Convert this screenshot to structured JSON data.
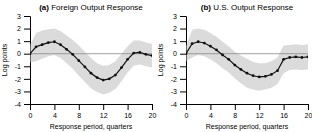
{
  "chart_data": [
    {
      "type": "line",
      "title": "(a) Foreign Output Response",
      "xlabel": "Response period, quarters",
      "ylabel": "Log points",
      "x": [
        0,
        1,
        2,
        3,
        4,
        5,
        6,
        7,
        8,
        9,
        10,
        11,
        12,
        13,
        14,
        15,
        16,
        17,
        18,
        19,
        20
      ],
      "xlim": [
        0,
        20
      ],
      "xticks": [
        0,
        4,
        8,
        12,
        16,
        20
      ],
      "ylim": [
        -4,
        3
      ],
      "yticks": [
        -4,
        -3,
        -2,
        -1,
        0,
        1,
        2,
        3
      ],
      "hline": {
        "y": 0,
        "color": "#888888"
      },
      "series": [
        {
          "color": "#111111",
          "marker": "circle",
          "values": [
            0.0,
            0.55,
            0.72,
            0.88,
            0.95,
            0.72,
            0.35,
            -0.05,
            -0.55,
            -1.05,
            -1.55,
            -1.9,
            -2.1,
            -2.0,
            -1.7,
            -1.1,
            -0.45,
            0.05,
            0.1,
            -0.05,
            -0.15
          ],
          "band_lo": [
            -0.7,
            -0.6,
            -0.4,
            -0.2,
            -0.1,
            -0.35,
            -0.75,
            -1.2,
            -1.75,
            -2.25,
            -2.75,
            -3.05,
            -3.25,
            -3.1,
            -2.8,
            -2.2,
            -1.5,
            -0.95,
            -0.85,
            -1.0,
            -1.1
          ],
          "band_hi": [
            0.7,
            1.65,
            1.85,
            1.95,
            2.0,
            1.8,
            1.45,
            1.1,
            0.65,
            0.15,
            -0.35,
            -0.75,
            -0.95,
            -0.9,
            -0.6,
            0.0,
            0.6,
            1.05,
            1.05,
            0.9,
            0.8
          ]
        }
      ]
    },
    {
      "type": "line",
      "title": "(b) U.S. Output Response",
      "xlabel": "Response period, quarters",
      "ylabel": "Log points",
      "x": [
        0,
        1,
        2,
        3,
        4,
        5,
        6,
        7,
        8,
        9,
        10,
        11,
        12,
        13,
        14,
        15,
        16,
        17,
        18,
        19,
        20
      ],
      "xlim": [
        0,
        20
      ],
      "xticks": [
        0,
        4,
        8,
        12,
        16,
        20
      ],
      "ylim": [
        -4,
        3
      ],
      "yticks": [
        -4,
        -3,
        -2,
        -1,
        0,
        1,
        2,
        3
      ],
      "hline": {
        "y": 0,
        "color": "#888888"
      },
      "series": [
        {
          "color": "#111111",
          "marker": "circle",
          "values": [
            0.0,
            0.8,
            0.95,
            0.85,
            0.6,
            0.3,
            -0.1,
            -0.45,
            -0.9,
            -1.25,
            -1.55,
            -1.75,
            -1.85,
            -1.8,
            -1.65,
            -1.35,
            -0.45,
            -0.3,
            -0.25,
            -0.3,
            -0.25
          ],
          "band_lo": [
            -0.6,
            -0.3,
            -0.1,
            -0.2,
            -0.45,
            -0.75,
            -1.15,
            -1.5,
            -1.95,
            -2.35,
            -2.7,
            -2.85,
            -2.95,
            -2.85,
            -2.7,
            -2.4,
            -1.55,
            -1.3,
            -1.25,
            -1.3,
            -1.25
          ],
          "band_hi": [
            0.6,
            1.9,
            2.0,
            1.9,
            1.65,
            1.35,
            0.95,
            0.6,
            0.15,
            -0.15,
            -0.4,
            -0.65,
            -0.75,
            -0.75,
            -0.6,
            -0.3,
            0.65,
            0.7,
            0.75,
            0.7,
            0.75
          ]
        }
      ]
    }
  ]
}
